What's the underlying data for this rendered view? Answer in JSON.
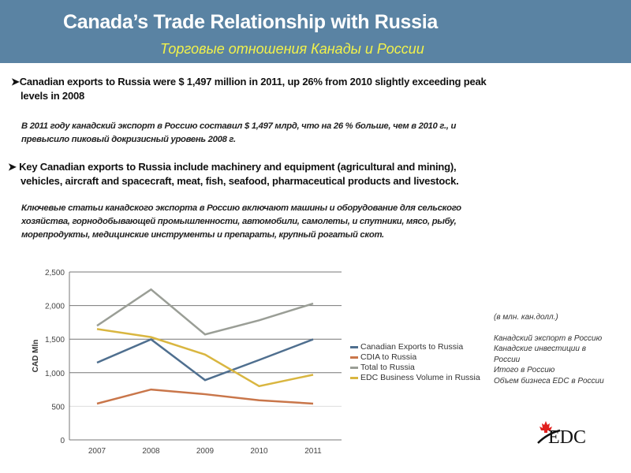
{
  "header": {
    "title": "Canada’s Trade Relationship with Russia",
    "subtitle": "Торговые отношения Канады и России"
  },
  "bullets": [
    {
      "en_line1": "Canadian exports to Russia were $ 1,497  million in 2011, up  26% from 2010 slightly exceeding  peak",
      "en_line2": "levels in 2008",
      "ru_line1": "В 2011 году канадский экспорт в Россию составил $ 1,497 млрд, что на 26 % больше, чем в 2010 г., и",
      "ru_line2": "превысило пиковый докризисный уровень 2008 г."
    },
    {
      "en_line1": " Key Canadian exports to Russia include machinery and equipment (agricultural and mining),",
      "en_line2": "vehicles, aircraft and spacecraft, meat, fish, seafood, pharmaceutical products and livestock.",
      "ru_line1": "Ключевые статьи канадского экспорта в Россию включают машины и оборудование для сельского",
      "ru_line2": "хозяйства, горнодобывающей промышленности, автомобили,  самолеты, и спутники, мясо, рыбу,",
      "ru_line3": "морепродукты, медицинские инструменты и препараты, крупный рогатый скот."
    }
  ],
  "bullet_icon": "arrowhead-bullet-icon",
  "chart_data": {
    "type": "line",
    "ylabel": "CAD Mln",
    "xlabel": "",
    "categories": [
      "2007",
      "2008",
      "2009",
      "2010",
      "2011"
    ],
    "ylim": [
      0,
      2500
    ],
    "yticks": [
      "0",
      "500",
      "1,000",
      "1,500",
      "2,000",
      "2,500"
    ],
    "grid": true,
    "legend_placement": "right",
    "series": [
      {
        "name": "Canadian Exports to Russia",
        "color": "#4f6f8f",
        "values": [
          1150,
          1497,
          890,
          1190,
          1497
        ]
      },
      {
        "name": "CDIA to Russia",
        "color": "#c9764a",
        "values": [
          540,
          750,
          680,
          590,
          540
        ]
      },
      {
        "name": "Total to Russia",
        "color": "#9a9e96",
        "values": [
          1700,
          2240,
          1570,
          1780,
          2030
        ]
      },
      {
        "name": "EDC Business Volume in Russia",
        "color": "#d9b640",
        "values": [
          1650,
          1530,
          1270,
          800,
          970
        ]
      }
    ]
  },
  "ru_legend": {
    "units": "(в млн. кан.долл.)",
    "items": [
      "Канадский экспорт в Россию",
      "Канадские инвестиции в",
      "России",
      "Итого в Россию",
      "Объем бизнеса EDC в России"
    ]
  },
  "logo": {
    "text": "EDC",
    "icon": "maple-leaf-icon"
  },
  "colors": {
    "header": "#5a83a3",
    "subtitle": "#f2f24a",
    "logo_leaf": "#e0201e"
  }
}
